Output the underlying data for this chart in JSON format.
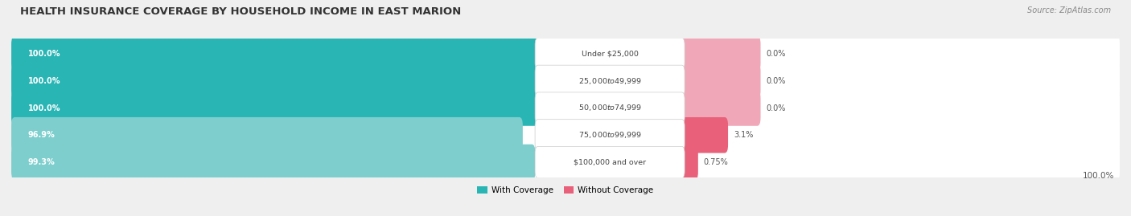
{
  "title": "HEALTH INSURANCE COVERAGE BY HOUSEHOLD INCOME IN EAST MARION",
  "source": "Source: ZipAtlas.com",
  "categories": [
    "Under $25,000",
    "$25,000 to $49,999",
    "$50,000 to $74,999",
    "$75,000 to $99,999",
    "$100,000 and over"
  ],
  "with_coverage": [
    100.0,
    100.0,
    100.0,
    96.9,
    99.3
  ],
  "without_coverage": [
    0.0,
    0.0,
    0.0,
    3.1,
    0.75
  ],
  "with_coverage_label": [
    "100.0%",
    "100.0%",
    "100.0%",
    "96.9%",
    "99.3%"
  ],
  "without_coverage_label": [
    "0.0%",
    "0.0%",
    "0.0%",
    "3.1%",
    "0.75%"
  ],
  "color_with_dark": "#2ab5b5",
  "color_with_light": "#7ecece",
  "color_without_dark": "#e8607a",
  "color_without_light": "#f0a8b8",
  "bg_color": "#efefef",
  "row_bg": "#e8e8e8",
  "legend_with": "With Coverage",
  "legend_without": "Without Coverage",
  "bottom_label": "100.0%",
  "figsize": [
    14.06,
    2.69
  ],
  "dpi": 100
}
